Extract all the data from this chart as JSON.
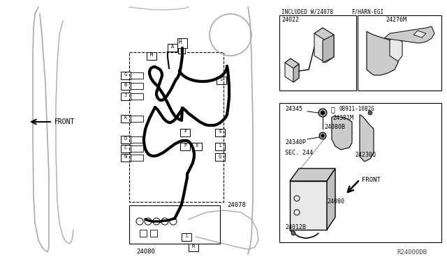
{
  "bg_color": "#ffffff",
  "lc": "#000000",
  "gray1": "#aaaaaa",
  "gray2": "#cccccc",
  "gray3": "#e8e8e8",
  "ref_code": "R24000DB",
  "included_label": "INCLUDED W/24078",
  "fharn_label": "F/HARN-EGI",
  "part_24022": "24022",
  "part_24276M": "24276M",
  "part_24078": "24078",
  "part_24080": "24080",
  "part_24345": "24345",
  "part_24381M": "24381M",
  "part_24080B": "24080B",
  "part_24340P": "24340P",
  "part_sec244": "SEC. 244",
  "part_24012B": "24012B",
  "part_08911": "08911-1082G",
  "part_24230Q": "24230Q",
  "front_left": "FRONT",
  "front_right": "FRONT"
}
